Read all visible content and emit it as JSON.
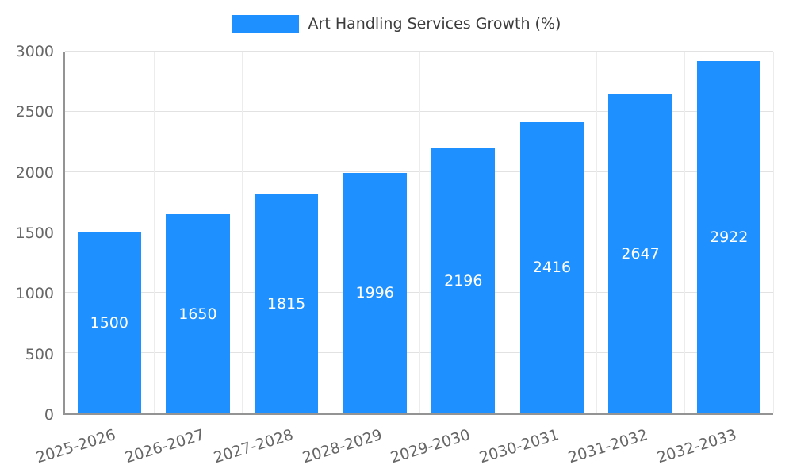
{
  "colors": {
    "bar": "#1e90ff",
    "grid_h": "#e2e2e2",
    "grid_v": "#ececec",
    "axis": "#949494",
    "tick_text": "#666666",
    "value_text": "#ffffff",
    "title_text": "#3c3c3c"
  },
  "chart_data": {
    "type": "bar",
    "title": "Art Handling Services Growth (%)",
    "categories": [
      "2025-2026",
      "2026-2027",
      "2027-2028",
      "2028-2029",
      "2029-2030",
      "2030-2031",
      "2031-2032",
      "2032-2033"
    ],
    "values": [
      1500,
      1650,
      1815,
      1996,
      2196,
      2416,
      2647,
      2922
    ],
    "xlabel": "",
    "ylabel": "",
    "ylim": [
      0,
      3000
    ],
    "ytick_step": 500,
    "yticks": [
      0,
      500,
      1000,
      1500,
      2000,
      2500,
      3000
    ],
    "grid": true,
    "legend_position": "top",
    "value_labels": "inside-bars"
  }
}
